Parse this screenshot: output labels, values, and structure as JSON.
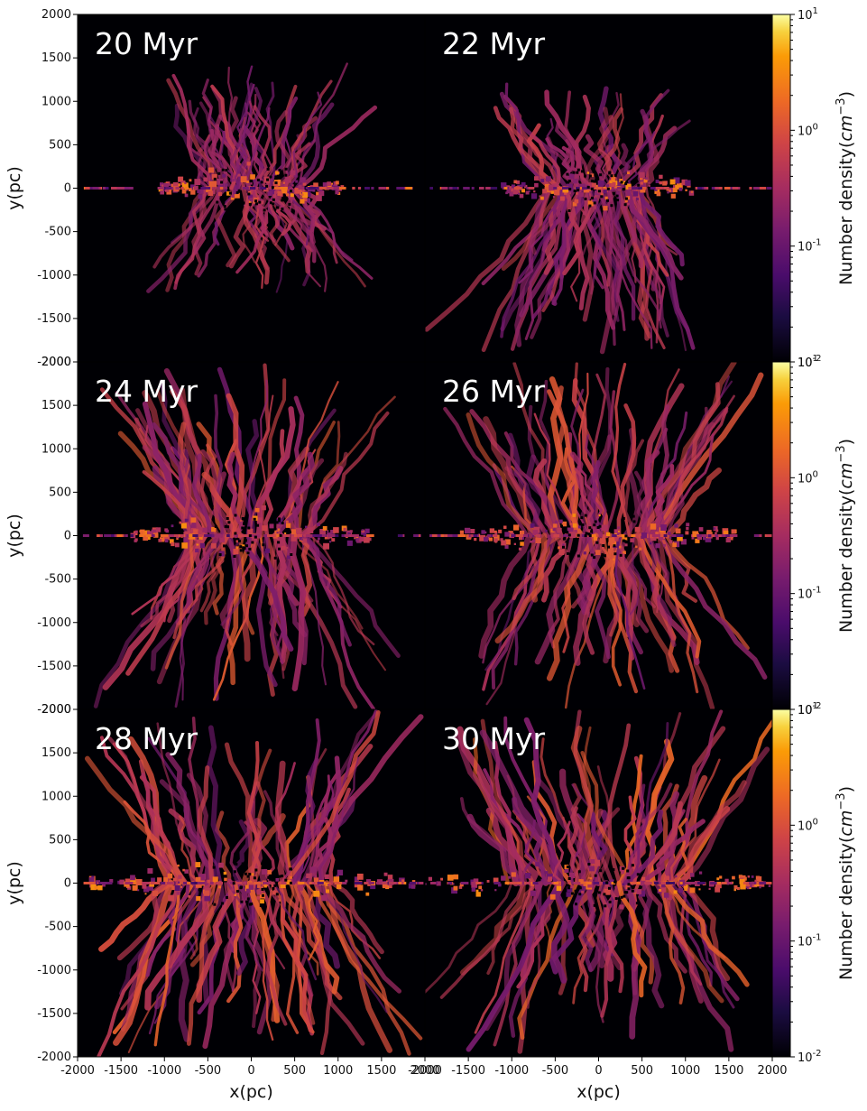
{
  "chart_data": {
    "type": "heatmap",
    "layout": "3x2 grid of density slices",
    "quantity": "Number density",
    "xlabel": "x(pc)",
    "ylabel": "y(pc)",
    "xlim": [
      -2000,
      2000
    ],
    "ylim": [
      -2000,
      2000
    ],
    "x_ticks": [
      -2000,
      -1500,
      -1000,
      -500,
      0,
      500,
      1000,
      1500,
      2000
    ],
    "y_ticks": [
      2000,
      1500,
      1000,
      500,
      0,
      -500,
      -1000,
      -1500,
      -2000
    ],
    "x_tick_labels": [
      "-2000",
      "-1500",
      "-1000",
      "-500",
      "0",
      "500",
      "1000",
      "1500",
      "2000"
    ],
    "y_tick_labels": [
      "2000",
      "1500",
      "1000",
      "500",
      "0",
      "-500",
      "-1000",
      "-1500",
      "-2000"
    ],
    "colormap": "inferno",
    "color_scale": "log",
    "colorbar": {
      "label": "Number density(cm^-3)",
      "range": [
        0.01,
        10
      ],
      "tick_values": [
        0.01,
        0.1,
        1,
        10
      ],
      "tick_labels": [
        "10^-2",
        "10^-1",
        "10^0",
        "10^1"
      ]
    },
    "panels": [
      {
        "time": "20 Myr",
        "row": 0,
        "col": 0,
        "extent_up": 1450,
        "extent_down": 1250,
        "extent_side": 1000,
        "brightness": 0.55
      },
      {
        "time": "22 Myr",
        "row": 0,
        "col": 1,
        "extent_up": 1200,
        "extent_down": 1900,
        "extent_side": 1050,
        "brightness": 0.6
      },
      {
        "time": "24 Myr",
        "row": 1,
        "col": 0,
        "extent_up": 2000,
        "extent_down": 2000,
        "extent_side": 1300,
        "brightness": 0.8
      },
      {
        "time": "26 Myr",
        "row": 1,
        "col": 1,
        "extent_up": 2000,
        "extent_down": 2000,
        "extent_side": 1500,
        "brightness": 0.8
      },
      {
        "time": "28 Myr",
        "row": 2,
        "col": 0,
        "extent_up": 2000,
        "extent_down": 2000,
        "extent_side": 1800,
        "brightness": 0.85
      },
      {
        "time": "30 Myr",
        "row": 2,
        "col": 1,
        "extent_up": 2000,
        "extent_down": 2000,
        "extent_side": 1900,
        "brightness": 0.9
      }
    ]
  }
}
